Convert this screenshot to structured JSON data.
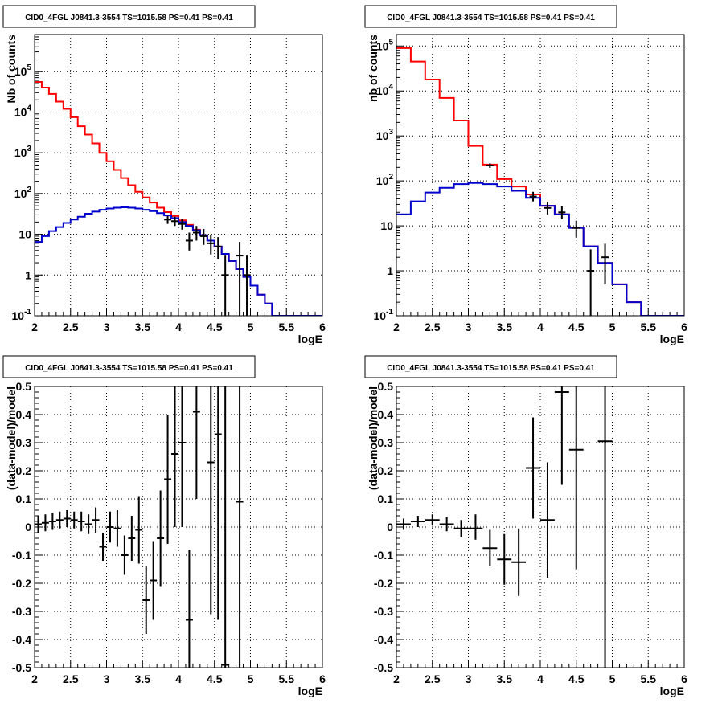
{
  "chart_data": [
    {
      "id": "top-left",
      "type": "line",
      "title": "CID0_4FGL J0841.3-3554 TS=1015.58 PS=0.41 PS=0.41",
      "xlabel": "logE",
      "ylabel": "Nb of counts",
      "yscale": "log",
      "xlim": [
        2,
        6
      ],
      "ylim": [
        0.1,
        800000
      ],
      "xticks": [
        "2",
        "2.5",
        "3",
        "3.5",
        "4",
        "4.5",
        "5",
        "5.5",
        "6"
      ],
      "yticks": [
        {
          "v": 0.1,
          "label": "10",
          "sup": "-1"
        },
        {
          "v": 1,
          "label": "1",
          "sup": ""
        },
        {
          "v": 10,
          "label": "10",
          "sup": ""
        },
        {
          "v": 100,
          "label": "10",
          "sup": "2"
        },
        {
          "v": 1000,
          "label": "10",
          "sup": "3"
        },
        {
          "v": 10000,
          "label": "10",
          "sup": "4"
        },
        {
          "v": 100000,
          "label": "10",
          "sup": "5"
        }
      ],
      "grid": true,
      "bin_edges": [
        2.0,
        2.1,
        2.2,
        2.3,
        2.4,
        2.5,
        2.6,
        2.7,
        2.8,
        2.9,
        3.0,
        3.1,
        3.2,
        3.3,
        3.4,
        3.5,
        3.6,
        3.7,
        3.8,
        3.9,
        4.0,
        4.1,
        4.2,
        4.3,
        4.4,
        4.5,
        4.6,
        4.7,
        4.8,
        4.9,
        5.0,
        5.1,
        5.2,
        5.3,
        5.4,
        5.5,
        5.6,
        5.7,
        5.8,
        5.9,
        6.0
      ],
      "series": [
        {
          "color": "#ff0000",
          "kind": "hist",
          "values": [
            55000,
            40000,
            28000,
            18000,
            12000,
            7500,
            4500,
            2800,
            1700,
            1000,
            620,
            380,
            240,
            160,
            110,
            80,
            60,
            45,
            35,
            28,
            22,
            17,
            13,
            9.5,
            7,
            5,
            3.3,
            2.2,
            1.4,
            0.9,
            0.55,
            0.33,
            0.2,
            0.1,
            0.1,
            0.1,
            0.1,
            0.1,
            0.1,
            0.1
          ]
        },
        {
          "color": "#0000cc",
          "kind": "hist",
          "values": [
            6.5,
            9,
            12,
            15,
            19,
            23,
            27,
            32,
            36,
            40,
            43,
            45,
            46,
            45,
            43,
            40,
            37,
            33,
            29,
            25,
            20,
            16,
            12.5,
            9.5,
            7,
            5,
            3.3,
            2.2,
            1.4,
            0.9,
            0.55,
            0.33,
            0.2,
            0.1,
            0.1,
            0.1,
            0.1,
            0.1,
            0.1,
            0.1
          ]
        },
        {
          "color": "#000000",
          "kind": "points",
          "points": [
            {
              "x": 3.85,
              "y": 23,
              "lo": 18,
              "hi": 28
            },
            {
              "x": 3.95,
              "y": 21,
              "lo": 16,
              "hi": 27
            },
            {
              "x": 4.05,
              "y": 18,
              "lo": 13,
              "hi": 24
            },
            {
              "x": 4.15,
              "y": 7,
              "lo": 4,
              "hi": 11
            },
            {
              "x": 4.25,
              "y": 11,
              "lo": 7,
              "hi": 16
            },
            {
              "x": 4.35,
              "y": 9,
              "lo": 5.5,
              "hi": 13.5
            },
            {
              "x": 4.45,
              "y": 6,
              "lo": 3.2,
              "hi": 9.5
            },
            {
              "x": 4.55,
              "y": 5,
              "lo": 2.5,
              "hi": 8.5
            },
            {
              "x": 4.65,
              "y": 1,
              "lo": 0.1,
              "hi": 3
            },
            {
              "x": 4.85,
              "y": 3,
              "lo": 0.1,
              "hi": 6.5
            },
            {
              "x": 4.95,
              "y": 1,
              "lo": 0.1,
              "hi": 3
            }
          ]
        }
      ]
    },
    {
      "id": "top-right",
      "type": "line",
      "title": "CID0_4FGL J0841.3-3554 TS=1015.58 PS=0.41 PS=0.41",
      "xlabel": "logE",
      "ylabel": "nb of counts",
      "yscale": "log",
      "xlim": [
        2,
        6
      ],
      "ylim": [
        0.1,
        180000
      ],
      "xticks": [
        "2",
        "2.5",
        "3",
        "3.5",
        "4",
        "4.5",
        "5",
        "5.5",
        "6"
      ],
      "yticks": [
        {
          "v": 0.1,
          "label": "10",
          "sup": "-1"
        },
        {
          "v": 1,
          "label": "1",
          "sup": ""
        },
        {
          "v": 10,
          "label": "10",
          "sup": ""
        },
        {
          "v": 100,
          "label": "10",
          "sup": "2"
        },
        {
          "v": 1000,
          "label": "10",
          "sup": "3"
        },
        {
          "v": 10000,
          "label": "10",
          "sup": "4"
        },
        {
          "v": 100000,
          "label": "10",
          "sup": "5"
        }
      ],
      "grid": true,
      "bin_edges": [
        2.0,
        2.2,
        2.4,
        2.6,
        2.8,
        3.0,
        3.2,
        3.4,
        3.6,
        3.8,
        4.0,
        4.2,
        4.4,
        4.6,
        4.8,
        5.0,
        5.2,
        5.4,
        5.6,
        5.8,
        6.0
      ],
      "series": [
        {
          "color": "#ff0000",
          "kind": "hist",
          "values": [
            90000,
            45000,
            18000,
            7000,
            2200,
            600,
            230,
            110,
            75,
            50,
            28,
            18,
            9,
            3.5,
            1.5,
            0.5,
            0.2,
            0.1,
            0.1,
            0.1
          ]
        },
        {
          "color": "#0000cc",
          "kind": "hist",
          "values": [
            18,
            35,
            55,
            70,
            85,
            90,
            85,
            75,
            60,
            42,
            28,
            18,
            9,
            3.5,
            1.5,
            0.5,
            0.2,
            0.1,
            0.1,
            0.1
          ]
        },
        {
          "color": "#000000",
          "kind": "points",
          "points": [
            {
              "x": 3.3,
              "y": 220,
              "lo": 195,
              "hi": 245
            },
            {
              "x": 3.9,
              "y": 45,
              "lo": 35,
              "hi": 57
            },
            {
              "x": 4.1,
              "y": 25,
              "lo": 18,
              "hi": 33
            },
            {
              "x": 4.3,
              "y": 20,
              "lo": 14,
              "hi": 27
            },
            {
              "x": 4.5,
              "y": 9,
              "lo": 5.5,
              "hi": 13
            },
            {
              "x": 4.7,
              "y": 1,
              "lo": 0.1,
              "hi": 3
            },
            {
              "x": 4.9,
              "y": 2,
              "lo": 0.5,
              "hi": 4
            }
          ]
        }
      ]
    },
    {
      "id": "bottom-left",
      "type": "scatter",
      "title": "CID0_4FGL J0841.3-3554 TS=1015.58 PS=0.41 PS=0.41",
      "xlabel": "logE",
      "ylabel": "(data-model)/model",
      "yscale": "linear",
      "xlim": [
        2,
        6
      ],
      "ylim": [
        -0.5,
        0.5
      ],
      "xticks": [
        "2",
        "2.5",
        "3",
        "3.5",
        "4",
        "4.5",
        "5",
        "5.5",
        "6"
      ],
      "yticks": [
        {
          "v": -0.5,
          "label": "-0.5"
        },
        {
          "v": -0.4,
          "label": "-0.4"
        },
        {
          "v": -0.3,
          "label": "-0.3"
        },
        {
          "v": -0.2,
          "label": "-0.2"
        },
        {
          "v": -0.1,
          "label": "-0.1"
        },
        {
          "v": 0,
          "label": "0"
        },
        {
          "v": 0.1,
          "label": "0.1"
        },
        {
          "v": 0.2,
          "label": "0.2"
        },
        {
          "v": 0.3,
          "label": "0.3"
        },
        {
          "v": 0.4,
          "label": "0.4"
        },
        {
          "v": 0.5,
          "label": "0.5"
        }
      ],
      "grid": true,
      "xerr": 0.05,
      "series": [
        {
          "color": "#000000",
          "kind": "points",
          "points": [
            {
              "x": 2.05,
              "y": 0.01,
              "lo": -0.02,
              "hi": 0.04
            },
            {
              "x": 2.15,
              "y": 0.015,
              "lo": -0.015,
              "hi": 0.045
            },
            {
              "x": 2.25,
              "y": 0.02,
              "lo": -0.01,
              "hi": 0.05
            },
            {
              "x": 2.35,
              "y": 0.025,
              "lo": -0.005,
              "hi": 0.055
            },
            {
              "x": 2.45,
              "y": 0.03,
              "lo": 0.0,
              "hi": 0.06
            },
            {
              "x": 2.55,
              "y": 0.025,
              "lo": -0.005,
              "hi": 0.055
            },
            {
              "x": 2.65,
              "y": 0.02,
              "lo": -0.015,
              "hi": 0.055
            },
            {
              "x": 2.75,
              "y": 0.01,
              "lo": -0.025,
              "hi": 0.045
            },
            {
              "x": 2.85,
              "y": 0.025,
              "lo": -0.02,
              "hi": 0.07
            },
            {
              "x": 2.95,
              "y": -0.07,
              "lo": -0.12,
              "hi": -0.02
            },
            {
              "x": 3.05,
              "y": 0.0,
              "lo": -0.055,
              "hi": 0.055
            },
            {
              "x": 3.15,
              "y": -0.005,
              "lo": -0.07,
              "hi": 0.06
            },
            {
              "x": 3.25,
              "y": -0.1,
              "lo": -0.17,
              "hi": -0.03
            },
            {
              "x": 3.35,
              "y": -0.04,
              "lo": -0.12,
              "hi": 0.04
            },
            {
              "x": 3.45,
              "y": -0.01,
              "lo": -0.13,
              "hi": 0.11
            },
            {
              "x": 3.55,
              "y": -0.26,
              "lo": -0.38,
              "hi": -0.14
            },
            {
              "x": 3.65,
              "y": -0.19,
              "lo": -0.33,
              "hi": -0.05
            },
            {
              "x": 3.75,
              "y": -0.04,
              "lo": -0.21,
              "hi": 0.13
            },
            {
              "x": 3.85,
              "y": 0.17,
              "lo": -0.06,
              "hi": 0.4
            },
            {
              "x": 3.95,
              "y": 0.26,
              "lo": 0.0,
              "hi": 0.52
            },
            {
              "x": 4.05,
              "y": 0.3,
              "lo": 0.0,
              "hi": 0.6
            },
            {
              "x": 4.15,
              "y": -0.33,
              "lo": -0.6,
              "hi": -0.08
            },
            {
              "x": 4.25,
              "y": 0.41,
              "lo": 0.1,
              "hi": 0.72
            },
            {
              "x": 4.45,
              "y": 0.23,
              "lo": -0.31,
              "hi": 0.77
            },
            {
              "x": 4.55,
              "y": 0.33,
              "lo": -0.33,
              "hi": 1.0
            },
            {
              "x": 4.65,
              "y": -0.49,
              "lo": -0.6,
              "hi": 0.5
            },
            {
              "x": 4.85,
              "y": 0.09,
              "lo": -0.6,
              "hi": 0.8
            }
          ]
        }
      ]
    },
    {
      "id": "bottom-right",
      "type": "scatter",
      "title": "CID0_4FGL J0841.3-3554 TS=1015.58 PS=0.41 PS=0.41",
      "xlabel": "logE",
      "ylabel": "(data-model)/model",
      "yscale": "linear",
      "xlim": [
        2,
        6
      ],
      "ylim": [
        -0.5,
        0.5
      ],
      "xticks": [
        "2",
        "2.5",
        "3",
        "3.5",
        "4",
        "4.5",
        "5",
        "5.5",
        "6"
      ],
      "yticks": [
        {
          "v": -0.5,
          "label": "-0.5"
        },
        {
          "v": -0.4,
          "label": "-0.4"
        },
        {
          "v": -0.3,
          "label": "-0.3"
        },
        {
          "v": -0.2,
          "label": "-0.2"
        },
        {
          "v": -0.1,
          "label": "-0.1"
        },
        {
          "v": 0,
          "label": "0"
        },
        {
          "v": 0.1,
          "label": "0.1"
        },
        {
          "v": 0.2,
          "label": "0.2"
        },
        {
          "v": 0.3,
          "label": "0.3"
        },
        {
          "v": 0.4,
          "label": "0.4"
        },
        {
          "v": 0.5,
          "label": "0.5"
        }
      ],
      "grid": true,
      "xerr": 0.1,
      "series": [
        {
          "color": "#000000",
          "kind": "points",
          "points": [
            {
              "x": 2.1,
              "y": 0.01,
              "lo": -0.01,
              "hi": 0.03
            },
            {
              "x": 2.3,
              "y": 0.02,
              "lo": 0.0,
              "hi": 0.04
            },
            {
              "x": 2.5,
              "y": 0.025,
              "lo": 0.005,
              "hi": 0.045
            },
            {
              "x": 2.7,
              "y": 0.01,
              "lo": -0.015,
              "hi": 0.035
            },
            {
              "x": 2.9,
              "y": -0.005,
              "lo": -0.035,
              "hi": 0.025
            },
            {
              "x": 3.1,
              "y": -0.005,
              "lo": -0.045,
              "hi": 0.045
            },
            {
              "x": 3.3,
              "y": -0.075,
              "lo": -0.14,
              "hi": -0.01
            },
            {
              "x": 3.5,
              "y": -0.115,
              "lo": -0.205,
              "hi": -0.025
            },
            {
              "x": 3.7,
              "y": -0.125,
              "lo": -0.245,
              "hi": -0.005
            },
            {
              "x": 3.9,
              "y": 0.21,
              "lo": 0.03,
              "hi": 0.39
            },
            {
              "x": 4.1,
              "y": 0.025,
              "lo": -0.18,
              "hi": 0.23
            },
            {
              "x": 4.3,
              "y": 0.48,
              "lo": 0.15,
              "hi": 0.8
            },
            {
              "x": 4.5,
              "y": 0.275,
              "lo": -0.15,
              "hi": 0.7
            },
            {
              "x": 4.9,
              "y": 0.305,
              "lo": -0.6,
              "hi": 1.0
            }
          ]
        }
      ]
    }
  ]
}
